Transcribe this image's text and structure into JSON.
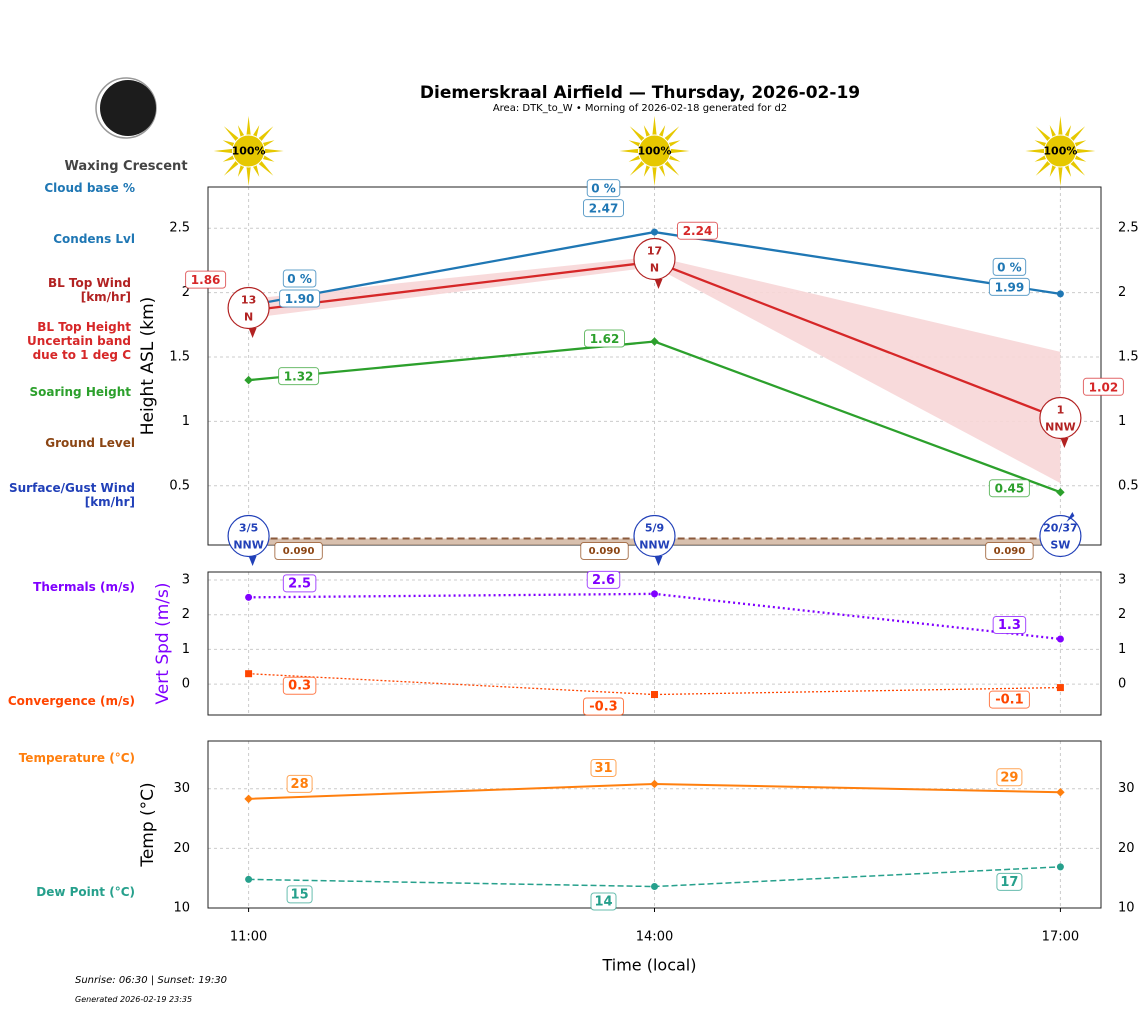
{
  "header": {
    "title": "Diemerskraal Airfield — Thursday, 2026-02-19",
    "subtitle": "Area: DTK_to_W • Morning of 2026-02-18 generated for d2",
    "moon_phase": "Waxing Crescent",
    "sun_icons": [
      "100%",
      "100%",
      "100%"
    ]
  },
  "side_labels": {
    "cloud_base": "Cloud base %",
    "condens": "Condens Lvl",
    "bl_wind": "BL Top Wind\n[km/hr]",
    "bl_height": "BL Top Height\nUncertain band\ndue to 1 deg C",
    "soaring": "Soaring Height",
    "ground": "Ground Level",
    "surface_wind": "Surface/Gust Wind\n[km/hr]",
    "thermals": "Thermals (m/s)",
    "convergence": "Convergence (m/s)",
    "temperature": "Temperature (°C)",
    "dew_point": "Dew Point (°C)"
  },
  "footer": {
    "sun_times": "Sunrise: 06:30 | Sunset: 19:30",
    "generated": "Generated 2026-02-19 23:35"
  },
  "colors": {
    "condens": "#1f77b4",
    "bl_top": "#d62728",
    "band": "#f7d6d7",
    "soaring": "#2ca02c",
    "ground": "#8b4513",
    "surface_wind": "#2140b8",
    "thermals": "#8000ff",
    "convergence": "#ff4500",
    "temperature": "#ff7f0e",
    "dew_point": "#26a08c",
    "sun": "#e6c800"
  },
  "chart_data": [
    {
      "type": "line",
      "x": [
        "11:00",
        "14:00",
        "17:00"
      ],
      "xlim_hours": [
        10.7,
        17.3
      ],
      "ylabel": "Height ASL (km)",
      "ylim": [
        0.04,
        2.82
      ],
      "yticks": [
        0.5,
        1.0,
        1.5,
        2.0,
        2.5
      ],
      "grid": true,
      "series": [
        {
          "key": "condens",
          "name": "Condens Lvl",
          "values": [
            1.9,
            2.47,
            1.99
          ],
          "labels": [
            "1.90",
            "2.47",
            "1.99"
          ],
          "cloud_base_labels": [
            "0 %",
            "0 %",
            "0 %"
          ]
        },
        {
          "key": "bl_top",
          "name": "BL Top Height",
          "values": [
            1.86,
            2.24,
            1.02
          ],
          "labels": [
            "1.86",
            "2.24",
            "1.02"
          ],
          "band_lower": [
            1.8,
            2.2,
            0.52
          ],
          "band_upper": [
            1.95,
            2.28,
            1.54
          ]
        },
        {
          "key": "soaring",
          "name": "Soaring Height",
          "values": [
            1.32,
            1.62,
            0.45
          ],
          "labels": [
            "1.32",
            "1.62",
            "0.45"
          ]
        },
        {
          "key": "ground",
          "name": "Ground Level",
          "values": [
            0.09,
            0.09,
            0.09
          ],
          "labels": [
            "0.090",
            "0.090",
            "0.090"
          ]
        }
      ],
      "bl_top_wind": [
        {
          "speed": "13",
          "dir": "N"
        },
        {
          "speed": "17",
          "dir": "N"
        },
        {
          "speed": "1",
          "dir": "NNW"
        }
      ],
      "surface_wind": [
        {
          "speed": "3/5",
          "dir": "NNW"
        },
        {
          "speed": "5/9",
          "dir": "NNW"
        },
        {
          "speed": "20/37",
          "dir": "SW"
        }
      ]
    },
    {
      "type": "line",
      "x": [
        "11:00",
        "14:00",
        "17:00"
      ],
      "ylabel": "Vert Spd (m/s)",
      "ylim": [
        -0.89,
        3.23
      ],
      "yticks": [
        0,
        1,
        2,
        3
      ],
      "grid": true,
      "series": [
        {
          "key": "thermals",
          "name": "Thermals (m/s)",
          "values": [
            2.5,
            2.6,
            1.3
          ],
          "labels": [
            "2.5",
            "2.6",
            "1.3"
          ]
        },
        {
          "key": "convergence",
          "name": "Convergence (m/s)",
          "values": [
            0.3,
            -0.3,
            -0.1
          ],
          "labels": [
            "0.3",
            "-0.3",
            "-0.1"
          ]
        }
      ]
    },
    {
      "type": "line",
      "x": [
        "11:00",
        "14:00",
        "17:00"
      ],
      "xlabel": "Time (local)",
      "ylabel": "Temp (°C)",
      "ylim": [
        10,
        38
      ],
      "yticks": [
        10,
        20,
        30
      ],
      "grid": true,
      "series": [
        {
          "key": "temperature",
          "name": "Temperature (°C)",
          "values": [
            28.3,
            30.8,
            29.4
          ],
          "labels": [
            "28",
            "31",
            "29"
          ]
        },
        {
          "key": "dew_point",
          "name": "Dew Point (°C)",
          "values": [
            14.8,
            13.6,
            16.9
          ],
          "labels": [
            "15",
            "14",
            "17"
          ]
        }
      ]
    }
  ]
}
